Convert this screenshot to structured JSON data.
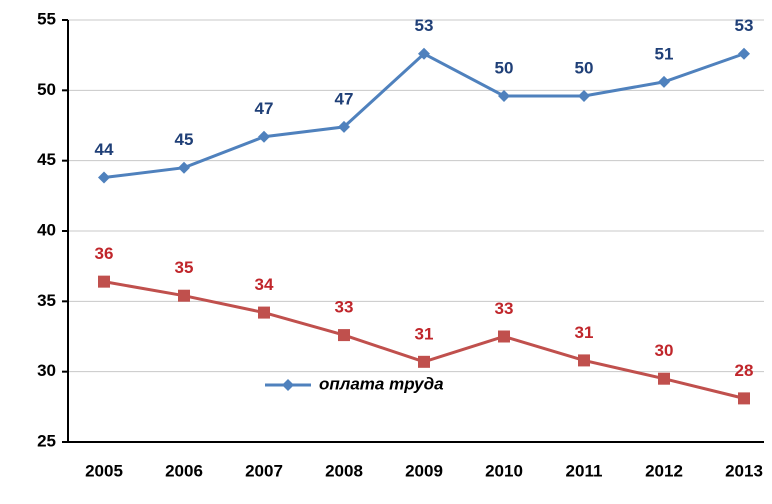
{
  "chart_data": {
    "type": "line",
    "categories": [
      "2005",
      "2006",
      "2007",
      "2008",
      "2009",
      "2010",
      "2011",
      "2012",
      "2013"
    ],
    "series": [
      {
        "name": "оплата труда",
        "color": "#4f81bd",
        "label_color": "#1f3f77",
        "marker": "diamond",
        "values": [
          43.8,
          44.5,
          46.7,
          47.4,
          52.6,
          49.6,
          49.6,
          50.6,
          52.6
        ],
        "value_labels": [
          "44",
          "45",
          "47",
          "47",
          "53",
          "50",
          "50",
          "51",
          "53"
        ]
      },
      {
        "color": "#c0504d",
        "label_color": "#c0262b",
        "marker": "square",
        "values": [
          36.4,
          35.4,
          34.2,
          32.6,
          30.7,
          32.5,
          30.8,
          29.5,
          28.1
        ],
        "value_labels": [
          "36",
          "35",
          "34",
          "33",
          "31",
          "33",
          "31",
          "30",
          "28"
        ]
      }
    ],
    "ylim": [
      25,
      55
    ],
    "yticks": [
      25,
      30,
      35,
      40,
      45,
      50,
      55
    ],
    "grid": true,
    "legend": "bottom-center"
  }
}
